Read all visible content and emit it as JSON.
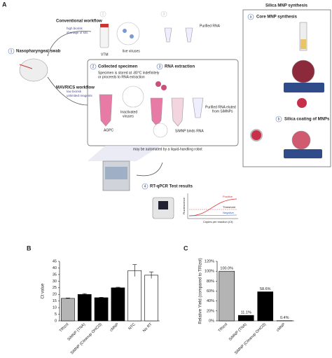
{
  "panel_a": {
    "panel_label": "A",
    "step_1": "1",
    "swab": "Nasopharyngeal swab",
    "conventional": "Conventional workflow",
    "conv_risk": "high biorisk",
    "conv_kits": "shortage of kits",
    "step_2_faded": "2",
    "step_3_faded": "3",
    "live_viruses": "live viruses",
    "vtm": "VTM",
    "purified_rna": "Purified RNA",
    "mavrics": "MAVRICS workflow",
    "mav_risk": "low biorisk",
    "mav_reagents": "unlimited reagents",
    "step_2": "2",
    "collected": "Collected specimen",
    "stored_1": "Specimen is stored at -80°C indefinitely",
    "stored_2": "or proceeds to RNA extraction",
    "step_3": "3",
    "extraction": "RNA extraction",
    "inactivated_1": "Inactivated",
    "inactivated_2": "viruses",
    "agpc": "AGPC",
    "binds": "SiMNP binds RNA",
    "eluted_1": "Purified RNA eluted",
    "eluted_2": "from SiMNPs",
    "robot": "may be automated by a liquid-handling robot",
    "step_4": "4",
    "rtqpcr": "RT-qPCR Test results",
    "positive": "Positive",
    "negative": "Negative",
    "threshold": "Threshold",
    "fluorescence": "Fluorescence",
    "copies": "Copies per reaction (Ct)",
    "silica_title": "Silica MNP synthesis",
    "step_a": "a",
    "core": "Core MNP synthesis",
    "step_b": "b",
    "coating": "Silica coating of MNPs"
  },
  "chart_data": [
    {
      "type": "bar",
      "panel_label": "B",
      "ylabel": "Ct value",
      "categories": [
        "TRIzol",
        "SiMNP (TNA)",
        "SiMNP (Cleanup OHCl3)",
        "cMNP",
        "NTC",
        "No RT"
      ],
      "values": [
        17,
        20,
        17.5,
        25,
        38,
        34.5
      ],
      "errors": [
        0.3,
        0.6,
        0.3,
        0.4,
        4.5,
        2.5
      ],
      "colors": [
        "#b4b4b4",
        "#000000",
        "#000000",
        "#000000",
        "#ffffff",
        "#ffffff"
      ],
      "ylim": [
        0,
        45
      ],
      "yticks": [
        0,
        5,
        10,
        15,
        20,
        25,
        30,
        35,
        40,
        45
      ]
    },
    {
      "type": "bar",
      "panel_label": "C",
      "ylabel": "Relative Yield (compared to TRIzol)",
      "categories": [
        "TRIzol",
        "SiMNP (TNA)",
        "SiMNP (Cleanup OHCl3)",
        "cMNP"
      ],
      "values": [
        100,
        11.1,
        58.6,
        0.4
      ],
      "value_labels": [
        "100.0%",
        "11.1%",
        "58.6%",
        "0.4%"
      ],
      "colors": [
        "#b4b4b4",
        "#000000",
        "#000000",
        "#000000"
      ],
      "ylim": [
        0,
        120
      ],
      "yticks": [
        {
          "value": 0,
          "label": "0%"
        },
        {
          "value": 20,
          "label": "20%"
        },
        {
          "value": 40,
          "label": "40%"
        },
        {
          "value": 60,
          "label": "60%"
        },
        {
          "value": 80,
          "label": "80%"
        },
        {
          "value": 100,
          "label": "100%"
        },
        {
          "value": 120,
          "label": "120%"
        }
      ]
    }
  ]
}
